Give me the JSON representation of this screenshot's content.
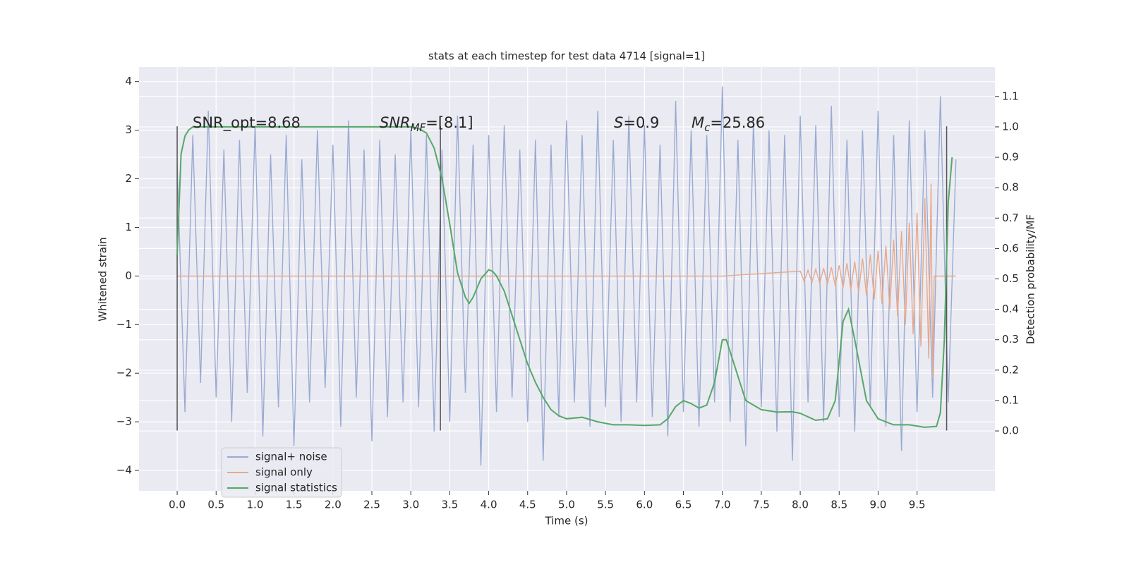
{
  "chart_data": {
    "type": "line",
    "title": "stats at each timestep for test data 4714 [signal=1]",
    "x_label": "Time (s)",
    "y_label": "Whitened strain",
    "y2_label": "Detection probability/MF",
    "xlim": [
      -0.49,
      10.5
    ],
    "ylim": [
      -4.42,
      4.3
    ],
    "y2lim": [
      -0.197,
      1.197
    ],
    "xticks": [
      {
        "value": 0,
        "label": "0.0"
      },
      0.5,
      {
        "value": 1,
        "label": "1.0"
      },
      1.5,
      {
        "value": 2,
        "label": "2.0"
      },
      2.5,
      {
        "value": 3,
        "label": "3.0"
      },
      3.5,
      {
        "value": 4,
        "label": "4.0"
      },
      4.5,
      {
        "value": 5,
        "label": "5.0"
      },
      5.5,
      {
        "value": 6,
        "label": "6.0"
      },
      6.5,
      {
        "value": 7,
        "label": "7.0"
      },
      7.5,
      {
        "value": 8,
        "label": "8.0"
      },
      8.5,
      {
        "value": 9,
        "label": "9.0"
      },
      9.5
    ],
    "yticks": [
      {
        "value": -4,
        "label": "−4"
      },
      {
        "value": -3,
        "label": "−3"
      },
      {
        "value": -2,
        "label": "−2"
      },
      {
        "value": -1,
        "label": "−1"
      },
      0,
      1,
      2,
      3,
      4
    ],
    "y2ticks": [
      {
        "value": 0,
        "label": "0.0"
      },
      0.1,
      0.2,
      0.3,
      0.4,
      0.5,
      0.6,
      0.7,
      0.8,
      0.9,
      {
        "value": 1,
        "label": "1.0"
      },
      1.1
    ],
    "grid": true,
    "legend": "lower left",
    "series": [
      {
        "name": "signal+ noise",
        "color": "#9aabd2",
        "x": [
          0,
          0.1,
          0.2,
          0.3,
          0.4,
          0.5,
          0.6,
          0.7,
          0.8,
          0.9,
          1,
          1.1,
          1.2,
          1.3,
          1.4,
          1.5,
          1.6,
          1.7,
          1.8,
          1.9,
          2,
          2.1,
          2.2,
          2.3,
          2.4,
          2.5,
          2.6,
          2.7,
          2.8,
          2.9,
          3,
          3.1,
          3.2,
          3.3,
          3.4,
          3.5,
          3.6,
          3.7,
          3.8,
          3.9,
          4,
          4.1,
          4.2,
          4.3,
          4.4,
          4.5,
          4.6,
          4.7,
          4.8,
          4.9,
          5,
          5.1,
          5.2,
          5.3,
          5.4,
          5.5,
          5.6,
          5.7,
          5.8,
          5.9,
          6,
          6.1,
          6.2,
          6.3,
          6.4,
          6.5,
          6.6,
          6.7,
          6.8,
          6.9,
          7,
          7.1,
          7.2,
          7.3,
          7.4,
          7.5,
          7.6,
          7.7,
          7.8,
          7.9,
          8,
          8.1,
          8.2,
          8.3,
          8.4,
          8.5,
          8.6,
          8.7,
          8.8,
          8.9,
          9,
          9.1,
          9.2,
          9.3,
          9.4,
          9.5,
          9.6,
          9.7,
          9.8,
          9.9,
          10
        ],
        "values": [
          2.3,
          -2.8,
          2.9,
          -2.2,
          3.4,
          -2.5,
          2.6,
          -3.0,
          2.8,
          -2.4,
          3.1,
          -3.3,
          2.5,
          -2.7,
          2.9,
          -3.5,
          2.4,
          -2.6,
          3.0,
          -2.3,
          2.7,
          -3.1,
          3.2,
          -2.5,
          2.6,
          -3.4,
          2.8,
          -2.9,
          2.5,
          -2.6,
          3.0,
          -2.7,
          2.9,
          -3.2,
          2.6,
          -3.0,
          3.3,
          -2.4,
          2.7,
          -3.9,
          2.9,
          -2.8,
          3.1,
          -2.5,
          2.6,
          -3.0,
          2.8,
          -3.8,
          2.7,
          -2.9,
          3.2,
          -2.6,
          2.9,
          -3.1,
          3.4,
          -2.7,
          2.8,
          -3.0,
          3.3,
          -2.6,
          3.1,
          -2.9,
          2.7,
          -3.3,
          3.6,
          -2.8,
          3.0,
          -3.1,
          2.9,
          -2.6,
          3.9,
          -3.0,
          2.8,
          -3.5,
          3.2,
          -2.7,
          3.0,
          -3.2,
          2.9,
          -3.8,
          3.3,
          -2.6,
          3.1,
          -3.0,
          3.5,
          -2.9,
          2.8,
          -3.2,
          3.0,
          -2.7,
          3.4,
          -3.1,
          2.9,
          -3.6,
          3.2,
          -2.8,
          3.0,
          -2.5,
          3.7,
          -2.6,
          2.4
        ]
      },
      {
        "name": "signal only",
        "color": "#e7a98b",
        "x": [
          0,
          1,
          2,
          3,
          4,
          5,
          6,
          7,
          8,
          8.05,
          8.1,
          8.15,
          8.2,
          8.25,
          8.3,
          8.35,
          8.4,
          8.45,
          8.5,
          8.55,
          8.6,
          8.65,
          8.7,
          8.75,
          8.8,
          8.85,
          8.9,
          8.95,
          9,
          9.05,
          9.1,
          9.15,
          9.2,
          9.25,
          9.3,
          9.35,
          9.4,
          9.45,
          9.5,
          9.55,
          9.6,
          9.65,
          9.68,
          9.7,
          9.72,
          10
        ],
        "values": [
          0,
          0,
          0,
          0,
          0,
          0,
          0,
          0,
          0.1,
          -0.11,
          0.12,
          -0.13,
          0.14,
          -0.15,
          0.16,
          -0.17,
          0.18,
          -0.2,
          0.22,
          -0.24,
          0.26,
          -0.28,
          0.3,
          -0.33,
          0.36,
          -0.4,
          0.44,
          -0.48,
          0.52,
          -0.57,
          0.62,
          -0.68,
          0.75,
          -0.83,
          0.92,
          -1.0,
          1.1,
          -1.2,
          1.3,
          -1.45,
          1.6,
          -1.7,
          1.9,
          -2.1,
          0,
          0
        ]
      },
      {
        "name": "signal statistics",
        "color": "#55a868",
        "axis": "y2",
        "x": [
          0,
          0.05,
          0.1,
          0.15,
          0.2,
          3,
          3.1,
          3.2,
          3.3,
          3.4,
          3.5,
          3.6,
          3.7,
          3.75,
          3.8,
          3.9,
          4,
          4.05,
          4.1,
          4.2,
          4.3,
          4.4,
          4.5,
          4.6,
          4.7,
          4.8,
          4.9,
          5,
          5.2,
          5.4,
          5.6,
          5.8,
          6,
          6.2,
          6.3,
          6.4,
          6.5,
          6.6,
          6.7,
          6.8,
          6.9,
          7,
          7.05,
          7.15,
          7.3,
          7.5,
          7.7,
          7.9,
          8,
          8.2,
          8.35,
          8.45,
          8.55,
          8.62,
          8.7,
          8.85,
          9,
          9.2,
          9.4,
          9.6,
          9.75,
          9.8,
          9.85,
          9.9,
          9.95
        ],
        "values": [
          0.58,
          0.91,
          0.97,
          0.99,
          1.0,
          1.0,
          0.995,
          0.98,
          0.93,
          0.83,
          0.68,
          0.52,
          0.44,
          0.42,
          0.44,
          0.5,
          0.53,
          0.525,
          0.51,
          0.46,
          0.38,
          0.3,
          0.22,
          0.16,
          0.11,
          0.07,
          0.05,
          0.04,
          0.045,
          0.03,
          0.02,
          0.02,
          0.018,
          0.02,
          0.04,
          0.08,
          0.1,
          0.09,
          0.075,
          0.085,
          0.16,
          0.3,
          0.3,
          0.22,
          0.1,
          0.07,
          0.062,
          0.063,
          0.058,
          0.035,
          0.04,
          0.1,
          0.36,
          0.4,
          0.3,
          0.1,
          0.04,
          0.02,
          0.02,
          0.012,
          0.015,
          0.06,
          0.3,
          0.75,
          0.9
        ]
      }
    ],
    "vlines": {
      "x": [
        0,
        3.38,
        9.88
      ],
      "ymin": -3.18,
      "ymax": 3.08,
      "color": "#555555"
    },
    "annotations": [
      {
        "main": "SNR_opt=8.68"
      },
      {
        "main": "SNR",
        "sub": "MF",
        "rest": "=[8.1]"
      },
      {
        "main": "S",
        "rest": "=0.9"
      },
      {
        "main": "M",
        "sub": "c",
        "rest": "=25.86"
      }
    ]
  }
}
